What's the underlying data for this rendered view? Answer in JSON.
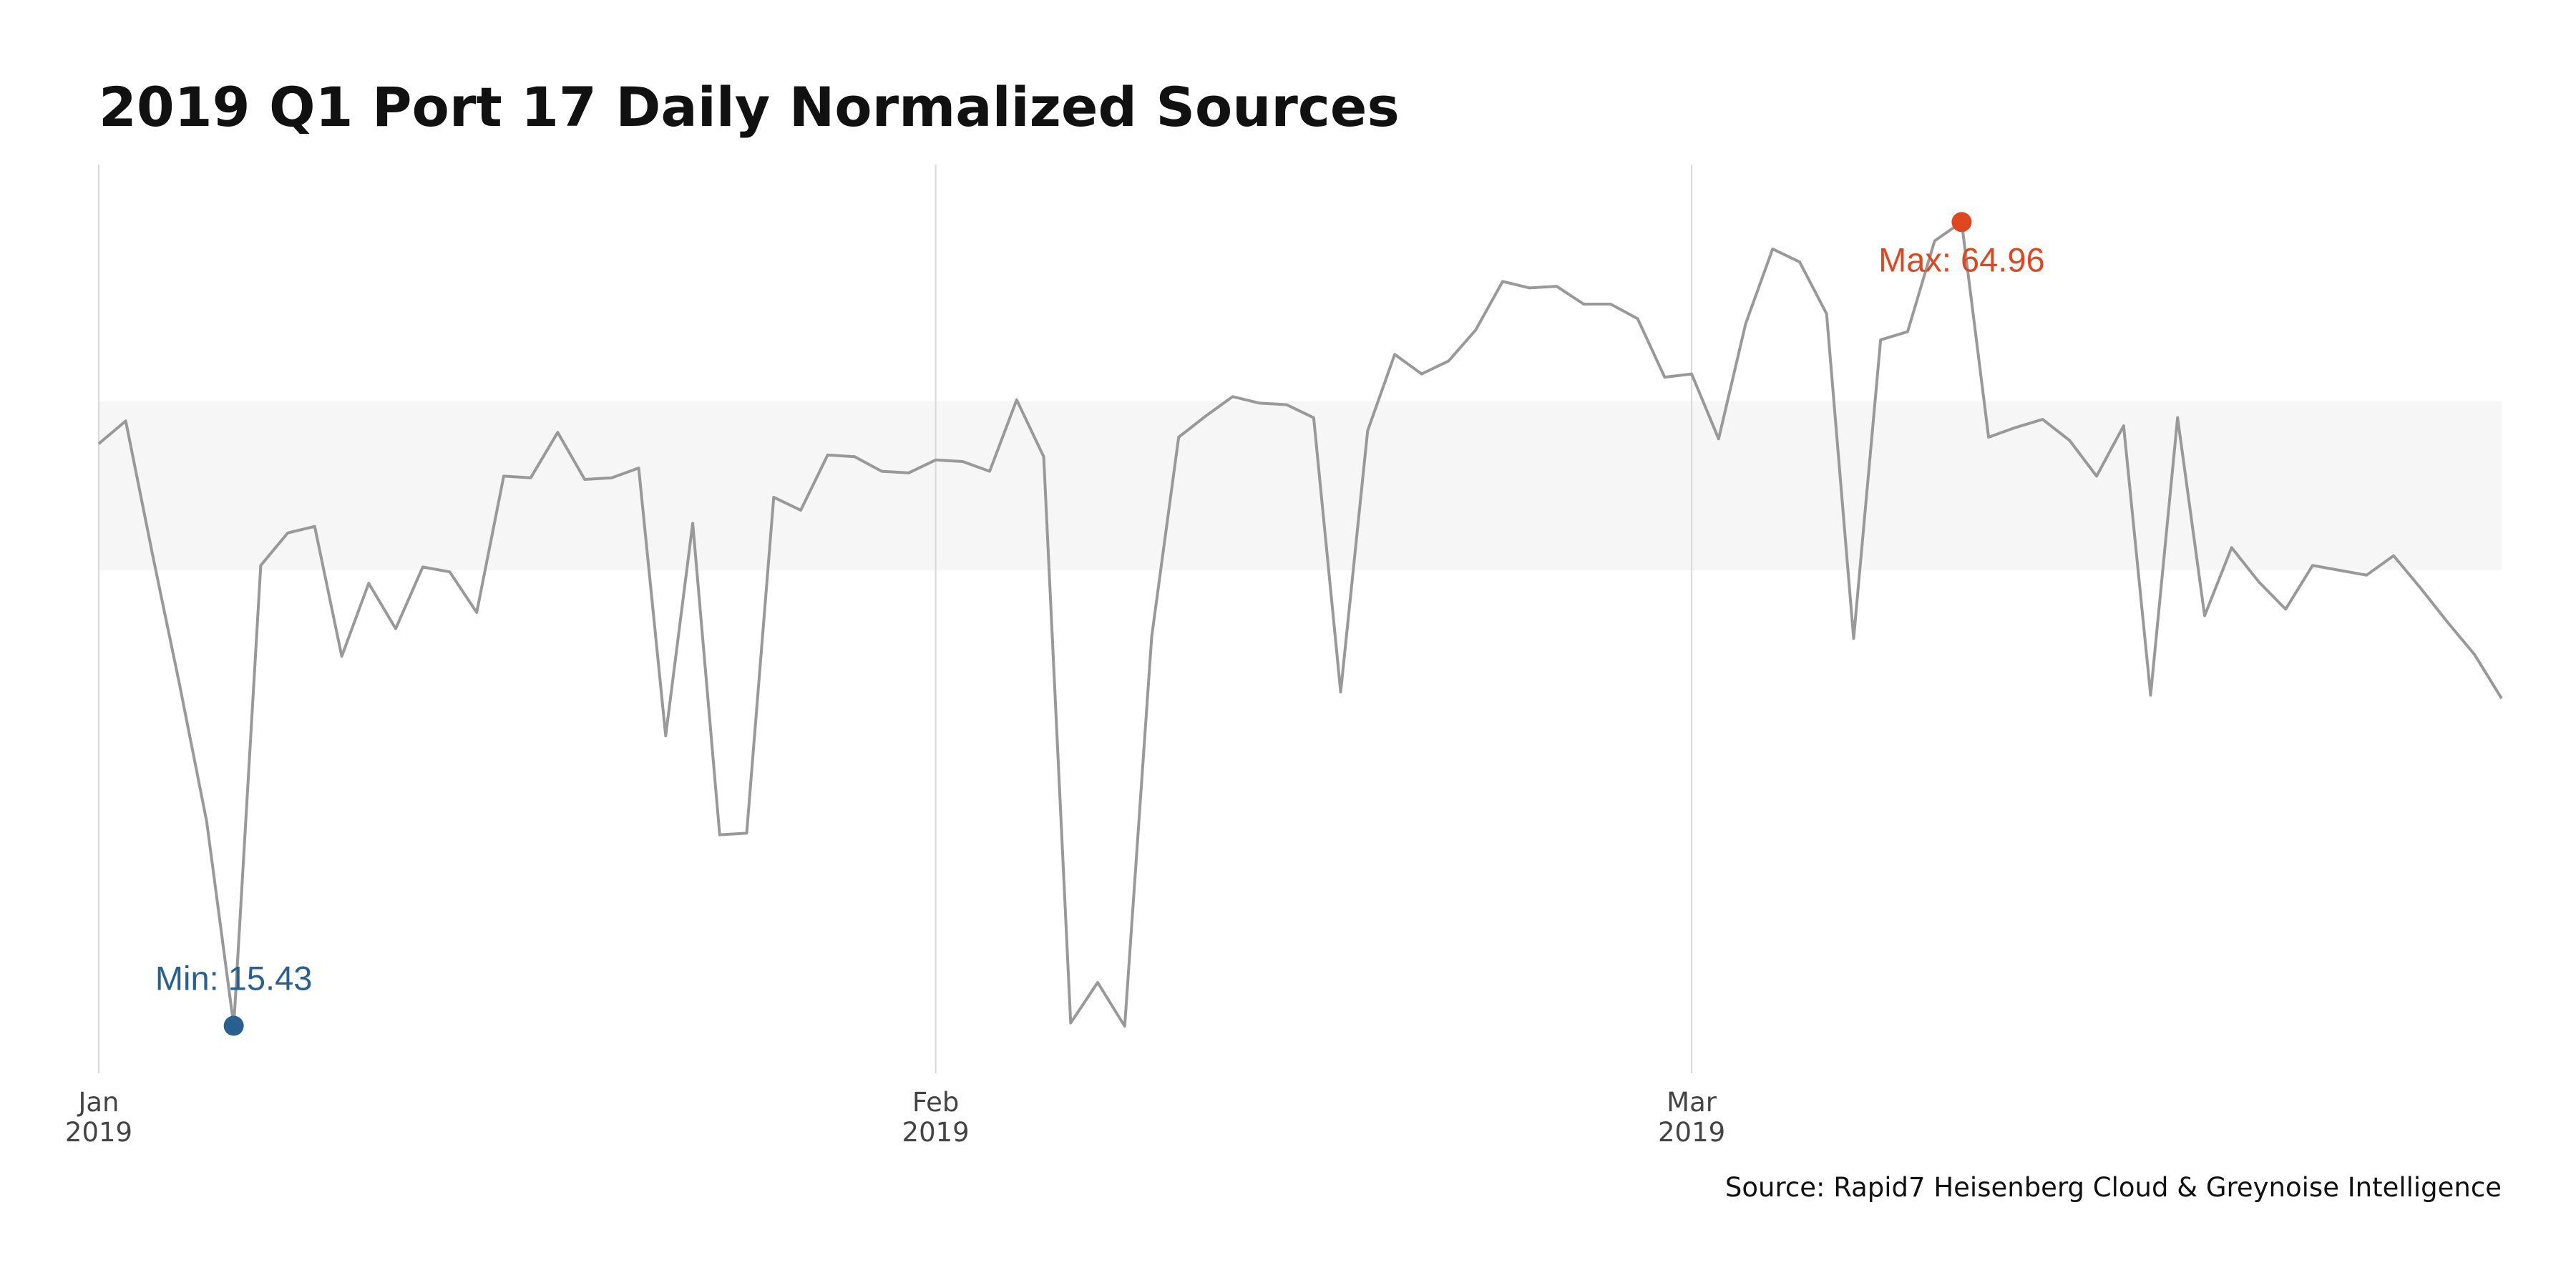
{
  "chart_data": {
    "type": "line",
    "title": "2019 Q1 Port 17 Daily Normalized Sources",
    "caption": "Source: Rapid7 Heisenberg Cloud & Greynoise Intelligence",
    "xlabel": "",
    "ylabel": "",
    "x_start": "2019-01-01",
    "x_end": "2019-03-31",
    "ylim": [
      12.5,
      68.5
    ],
    "grid": "vertical lines at month starts",
    "x_ticks": [
      {
        "date": "2019-01-01",
        "label_month": "Jan",
        "label_year": "2019"
      },
      {
        "date": "2019-02-01",
        "label_month": "Feb",
        "label_year": "2019"
      },
      {
        "date": "2019-03-01",
        "label_month": "Mar",
        "label_year": "2019"
      }
    ],
    "band": {
      "from": 43.5,
      "to": 53.9,
      "color": "#f6f6f6"
    },
    "series": [
      {
        "color": "#999999",
        "x": [
          "2019-01-01",
          "2019-01-02",
          "2019-01-03",
          "2019-01-04",
          "2019-01-05",
          "2019-01-06",
          "2019-01-07",
          "2019-01-08",
          "2019-01-09",
          "2019-01-10",
          "2019-01-11",
          "2019-01-12",
          "2019-01-13",
          "2019-01-14",
          "2019-01-15",
          "2019-01-16",
          "2019-01-17",
          "2019-01-18",
          "2019-01-19",
          "2019-01-20",
          "2019-01-21",
          "2019-01-22",
          "2019-01-23",
          "2019-01-24",
          "2019-01-25",
          "2019-01-26",
          "2019-01-27",
          "2019-01-28",
          "2019-01-29",
          "2019-01-30",
          "2019-01-31",
          "2019-02-01",
          "2019-02-02",
          "2019-02-03",
          "2019-02-04",
          "2019-02-05",
          "2019-02-06",
          "2019-02-07",
          "2019-02-08",
          "2019-02-09",
          "2019-02-10",
          "2019-02-11",
          "2019-02-12",
          "2019-02-13",
          "2019-02-14",
          "2019-02-15",
          "2019-02-16",
          "2019-02-17",
          "2019-02-18",
          "2019-02-19",
          "2019-02-20",
          "2019-02-21",
          "2019-02-22",
          "2019-02-23",
          "2019-02-24",
          "2019-02-25",
          "2019-02-26",
          "2019-02-27",
          "2019-02-28",
          "2019-03-01",
          "2019-03-02",
          "2019-03-03",
          "2019-03-04",
          "2019-03-05",
          "2019-03-06",
          "2019-03-07",
          "2019-03-08",
          "2019-03-09",
          "2019-03-10",
          "2019-03-11",
          "2019-03-12",
          "2019-03-13",
          "2019-03-14",
          "2019-03-15",
          "2019-03-16",
          "2019-03-17",
          "2019-03-18",
          "2019-03-19",
          "2019-03-20",
          "2019-03-21",
          "2019-03-22",
          "2019-03-23",
          "2019-03-24",
          "2019-03-25",
          "2019-03-26",
          "2019-03-27",
          "2019-03-28",
          "2019-03-29",
          "2019-03-30",
          "2019-03-31"
        ],
        "values": [
          51.3,
          52.7,
          44.4,
          36.4,
          28.0,
          15.43,
          43.8,
          45.8,
          46.2,
          38.2,
          42.7,
          39.9,
          43.7,
          43.4,
          40.9,
          49.3,
          49.2,
          52.0,
          49.1,
          49.2,
          49.8,
          33.3,
          46.4,
          27.2,
          27.3,
          48.0,
          47.2,
          50.6,
          50.5,
          49.6,
          49.5,
          50.3,
          50.2,
          49.6,
          54.0,
          50.5,
          15.6,
          18.1,
          15.4,
          39.4,
          51.7,
          53.0,
          54.2,
          53.8,
          53.7,
          52.9,
          36.0,
          52.1,
          56.8,
          55.6,
          56.4,
          58.3,
          61.3,
          60.9,
          61.0,
          59.9,
          59.9,
          59.0,
          55.4,
          55.6,
          51.6,
          58.7,
          63.3,
          62.5,
          59.3,
          39.3,
          57.7,
          58.2,
          63.8,
          64.96,
          51.7,
          52.3,
          52.8,
          51.5,
          49.3,
          52.4,
          35.8,
          52.9,
          40.7,
          44.9,
          42.8,
          41.1,
          43.8,
          43.5,
          43.2,
          44.4,
          42.4,
          40.3,
          38.3,
          35.6
        ]
      }
    ],
    "annotations": [
      {
        "label": "Min: 15.43",
        "x": "2019-01-06",
        "y": 15.43,
        "color": "#28608f"
      },
      {
        "label": "Max: 64.96",
        "x": "2019-03-11",
        "y": 64.96,
        "color": "#de4820"
      }
    ]
  }
}
